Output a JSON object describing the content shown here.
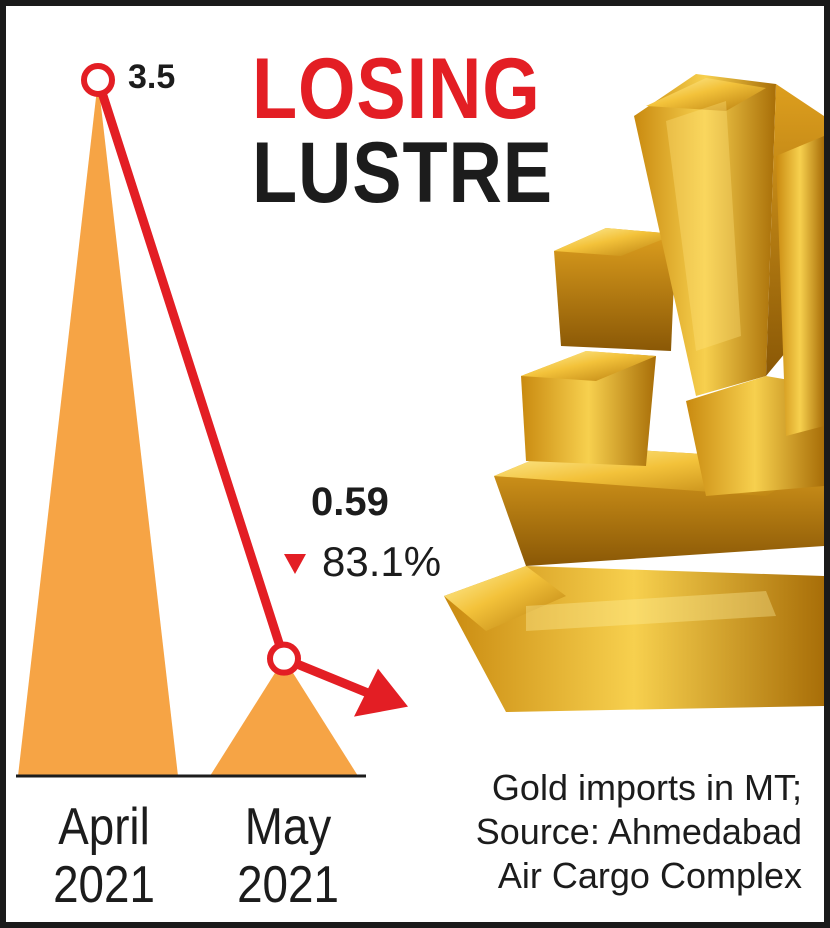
{
  "chart_data": {
    "type": "area",
    "title_line1": "LOSING",
    "title_line2": "LUSTRE",
    "categories": [
      {
        "line1": "April",
        "line2": "2021"
      },
      {
        "line1": "May",
        "line2": "2021"
      }
    ],
    "values": [
      3.5,
      0.59
    ],
    "value_labels": [
      "3.5",
      "0.59"
    ],
    "change_label": "83.1%",
    "note_lines": [
      "Gold imports in MT;",
      "Source: Ahmedabad",
      "Air Cargo Complex"
    ],
    "colors": {
      "peak_fill": "#f6a445",
      "trend_line": "#e31e24",
      "title_accent": "#e31e24",
      "text": "#1c1c1c"
    }
  },
  "icons": {
    "decoration": "gold-bars-illustration"
  }
}
